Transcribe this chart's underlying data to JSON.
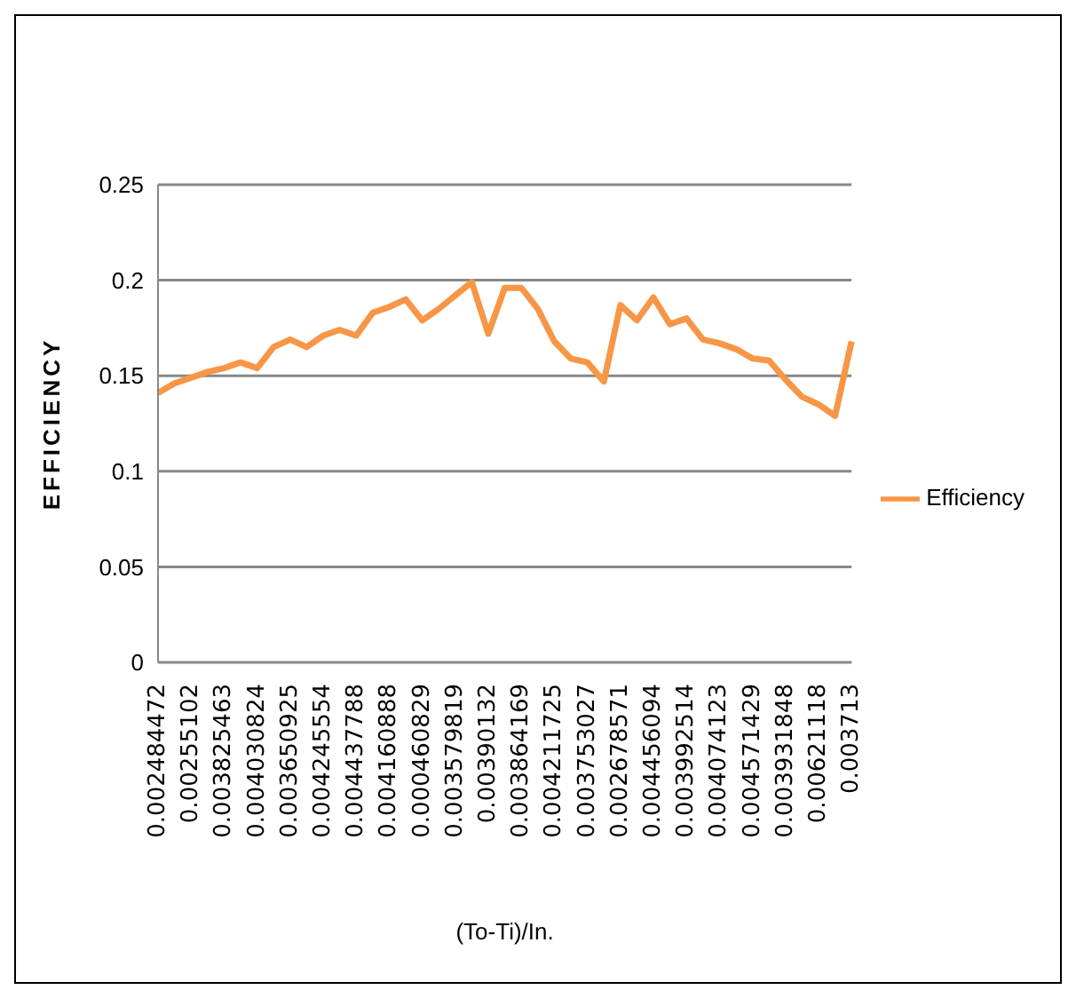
{
  "chart_data": {
    "type": "line",
    "xlabel": "(To-Ti)/In.",
    "ylabel": "EFFICIENCY",
    "categories": [
      "0.002484472",
      null,
      "0.00255102",
      null,
      "0.003825463",
      null,
      "0.004030824",
      null,
      "0.003650925",
      null,
      "0.004245554",
      null,
      "0.004437788",
      null,
      "0.004160888",
      null,
      "0.000460829",
      null,
      "0.003579819",
      null,
      "0.00390132",
      null,
      "0.003864169",
      null,
      "0.004211725",
      null,
      "0.003753027",
      null,
      "0.002678571",
      null,
      "0.004456094",
      null,
      "0.003992514",
      null,
      "0.004074123",
      null,
      "0.004571429",
      null,
      "0.003931848",
      null,
      "0.00621118",
      null,
      "0.003713"
    ],
    "series": [
      {
        "name": "Efficiency",
        "color": "#f79646",
        "values": [
          0.141,
          0.146,
          0.149,
          0.152,
          0.154,
          0.157,
          0.154,
          0.165,
          0.169,
          0.165,
          0.171,
          0.174,
          0.171,
          0.183,
          0.186,
          0.19,
          0.179,
          0.185,
          0.192,
          0.199,
          0.172,
          0.196,
          0.196,
          0.185,
          0.168,
          0.159,
          0.157,
          0.147,
          0.187,
          0.179,
          0.191,
          0.177,
          0.18,
          0.169,
          0.167,
          0.164,
          0.159,
          0.158,
          0.148,
          0.139,
          0.135,
          0.129,
          0.168
        ]
      }
    ],
    "ylim": [
      0,
      0.25
    ],
    "yticks": [
      0,
      0.05,
      0.1,
      0.15,
      0.2,
      0.25
    ],
    "grid": "y",
    "legend": "right",
    "marker": "none",
    "line_style": "solid"
  }
}
